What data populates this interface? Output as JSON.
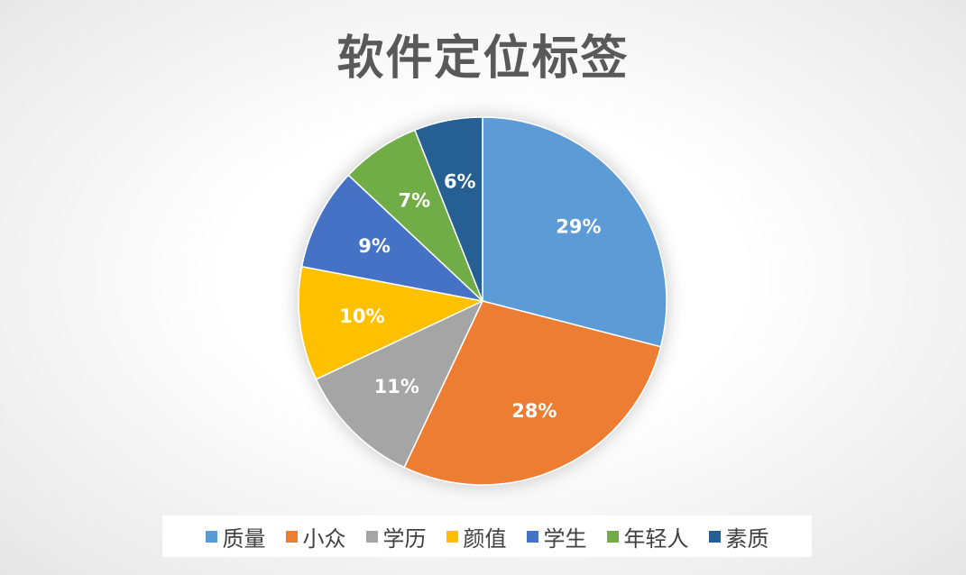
{
  "chart_data": {
    "type": "pie",
    "title": "软件定位标签",
    "slices": [
      {
        "label": "质量",
        "value": 29,
        "display": "29%",
        "color": "#5B9BD5"
      },
      {
        "label": "小众",
        "value": 28,
        "display": "28%",
        "color": "#ED7D31"
      },
      {
        "label": "学历",
        "value": 11,
        "display": "11%",
        "color": "#A5A5A5"
      },
      {
        "label": "颜值",
        "value": 10,
        "display": "10%",
        "color": "#FFC000"
      },
      {
        "label": "学生",
        "value": 9,
        "display": "9%",
        "color": "#4472C4"
      },
      {
        "label": "年轻人",
        "value": 7,
        "display": "7%",
        "color": "#70AD47"
      },
      {
        "label": "素质",
        "value": 6,
        "display": "6%",
        "color": "#255E91"
      }
    ],
    "legend_position": "bottom"
  }
}
